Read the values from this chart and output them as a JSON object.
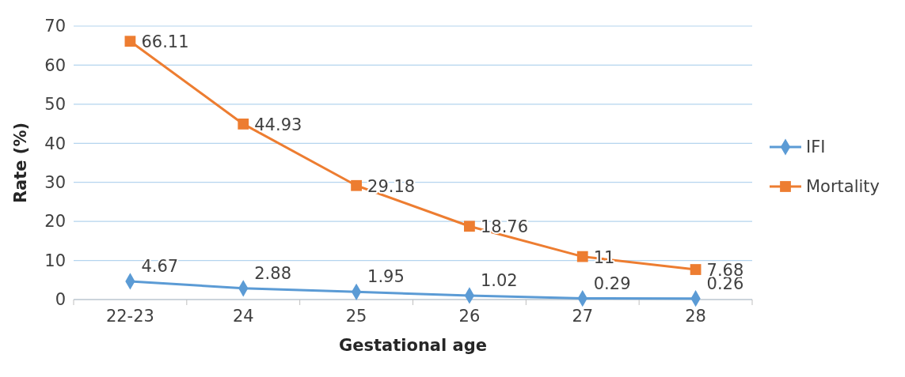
{
  "chart_data": {
    "type": "line",
    "xlabel": "Gestational age",
    "ylabel": "Rate (%)",
    "categories": [
      "22-23",
      "24",
      "25",
      "26",
      "27",
      "28"
    ],
    "series": [
      {
        "name": "IFI",
        "color": "#5b9bd5",
        "marker": "diamond",
        "values": [
          4.67,
          2.88,
          1.95,
          1.02,
          0.29,
          0.26
        ]
      },
      {
        "name": "Mortality",
        "color": "#ed7d31",
        "marker": "square",
        "values": [
          66.11,
          44.93,
          29.18,
          18.76,
          11,
          7.68
        ]
      }
    ],
    "ylim": [
      0,
      70
    ],
    "yticks": [
      0,
      10,
      20,
      30,
      40,
      50,
      60,
      70
    ],
    "grid": "y",
    "legend": "right",
    "data_labels": true
  }
}
